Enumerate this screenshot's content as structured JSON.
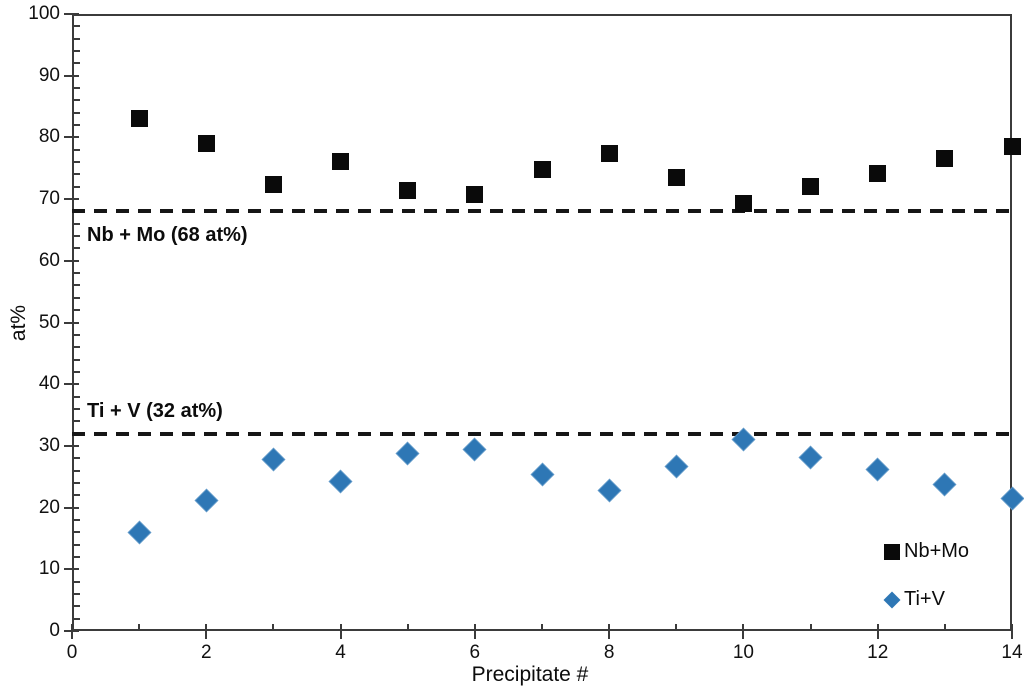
{
  "chart_data": {
    "type": "scatter",
    "title": "",
    "xlabel": "Precipitate #",
    "ylabel": "at%",
    "xlim": [
      0,
      14
    ],
    "ylim": [
      0,
      100
    ],
    "x_major_tick_step": 2,
    "x_minor_tick_step": 1,
    "y_major_tick_step": 10,
    "y_minor_tick_step": 2,
    "grid": false,
    "legend_position": "inside-bottom-right",
    "x": [
      1,
      2,
      3,
      4,
      5,
      6,
      7,
      8,
      9,
      10,
      11,
      12,
      13,
      14
    ],
    "series": [
      {
        "name": "Nb+Mo",
        "marker": "square",
        "color": "#0a0a0a",
        "values": [
          83.0,
          79.0,
          72.4,
          76.1,
          71.4,
          70.8,
          74.8,
          77.4,
          73.5,
          69.3,
          72.0,
          74.2,
          76.6,
          78.6
        ]
      },
      {
        "name": "Ti+V",
        "marker": "diamond",
        "color": "#2e77b5",
        "values": [
          16.0,
          21.2,
          27.8,
          24.2,
          28.8,
          29.4,
          25.4,
          22.7,
          26.6,
          31.0,
          28.2,
          26.2,
          23.7,
          21.5
        ]
      }
    ],
    "reference_lines": [
      {
        "label": "Nb + Mo (68 at%)",
        "value": 68,
        "style": "dashed",
        "color": "#161616",
        "label_position": "below-line"
      },
      {
        "label": "Ti + V (32 at%)",
        "value": 32,
        "style": "dashed",
        "color": "#161616",
        "label_position": "above-line"
      }
    ],
    "y_tick_labels": [
      "0",
      "10",
      "20",
      "30",
      "40",
      "50",
      "60",
      "70",
      "80",
      "90",
      "100"
    ],
    "x_tick_labels": [
      "0",
      "2",
      "4",
      "6",
      "8",
      "10",
      "12",
      "14"
    ]
  },
  "colors": {
    "background": "#ffffff",
    "axis": "#3b3b3b",
    "text": "#111111",
    "series_nbmo": "#0a0a0a",
    "series_tiv": "#2e77b5"
  }
}
